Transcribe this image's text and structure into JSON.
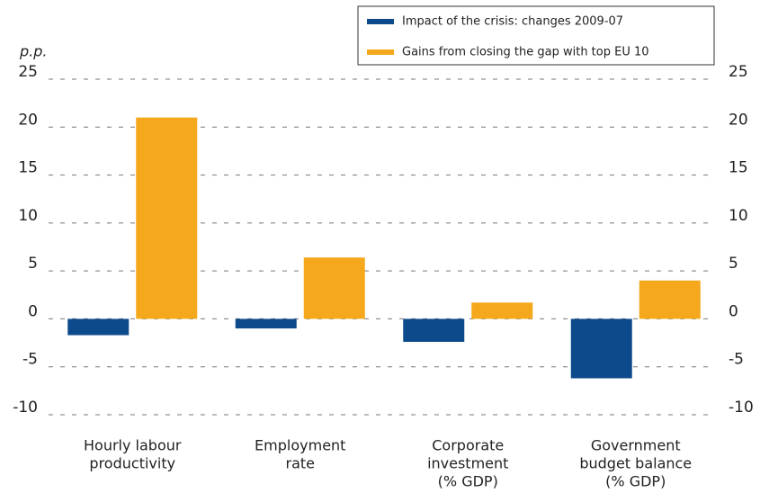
{
  "chart_data": {
    "type": "bar",
    "y_label": "p.p.",
    "categories": [
      [
        "Hourly labour",
        "productivity"
      ],
      [
        "Employment",
        "rate"
      ],
      [
        "Corporate",
        "investment",
        "(% GDP)"
      ],
      [
        "Government",
        "budget balance",
        "(% GDP)"
      ]
    ],
    "series": [
      {
        "name": "Impact of the crisis: changes 2009-07",
        "color": "#0d4a8c",
        "values": [
          -1.7,
          -1.0,
          -2.4,
          -6.2
        ]
      },
      {
        "name": "Gains from closing the gap with top EU 10",
        "color": "#f5a81c",
        "values": [
          21.0,
          6.4,
          1.7,
          4.0
        ]
      }
    ],
    "ylim": [
      -10,
      25
    ],
    "yticks": [
      -10,
      -5,
      0,
      5,
      10,
      15,
      20,
      25
    ],
    "grid": true,
    "legend": "top-right"
  }
}
